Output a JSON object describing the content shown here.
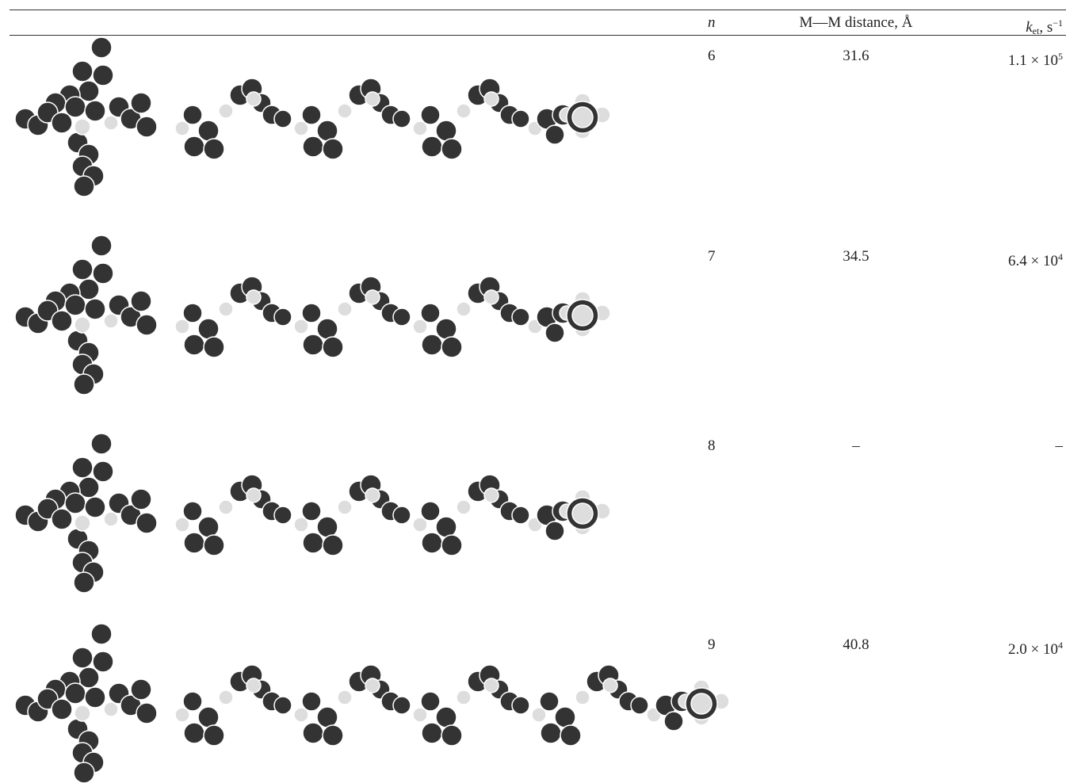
{
  "table": {
    "header": {
      "n": "n",
      "distance": "M—M distance, Å",
      "rate": {
        "symbol": "k",
        "subscript": "et",
        "unit": ", s",
        "exponent": "−1"
      }
    },
    "rows": [
      {
        "n": "6",
        "distance": "31.6",
        "rate": {
          "mantissa": "1.1 × 10",
          "exponent": "5"
        }
      },
      {
        "n": "7",
        "distance": "34.5",
        "rate": {
          "mantissa": "6.4 × 10",
          "exponent": "4"
        }
      },
      {
        "n": "8",
        "distance": "–",
        "rate": {
          "mantissa": "–"
        }
      },
      {
        "n": "9",
        "distance": "40.8",
        "rate": {
          "mantissa": "2.0 × 10",
          "exponent": "4"
        }
      }
    ]
  }
}
